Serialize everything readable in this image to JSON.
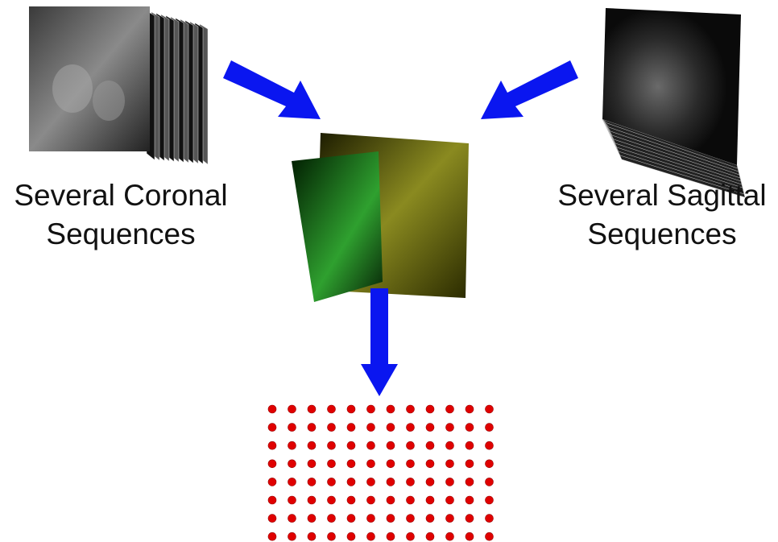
{
  "nodes": [
    {
      "label": [
        "Several Coronal",
        "Sequences"
      ]
    },
    {
      "label": [
        "Several Sagittal",
        "Sequences"
      ]
    }
  ]
}
